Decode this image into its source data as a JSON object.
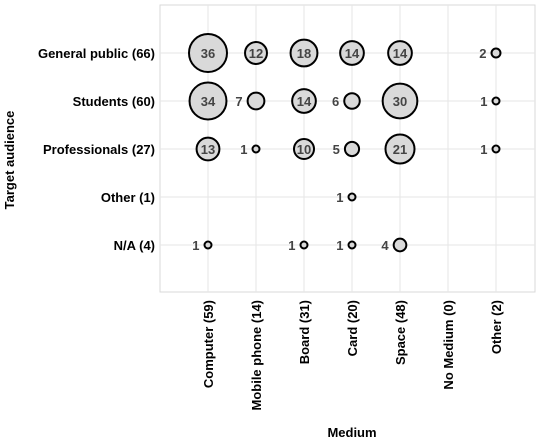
{
  "chart_data": {
    "type": "bubble",
    "title": "",
    "xlabel": "Medium",
    "ylabel": "Target audience",
    "grid": true,
    "rows": [
      "General public (66)",
      "Students (60)",
      "Professionals (27)",
      "Other (1)",
      "N/A (4)"
    ],
    "columns": [
      "Computer (59)",
      "Mobile phone (14)",
      "Board (31)",
      "Card (20)",
      "Space (48)",
      "No Medium (0)",
      "Other (2)"
    ],
    "values": [
      [
        36,
        12,
        18,
        14,
        14,
        0,
        2
      ],
      [
        34,
        7,
        14,
        6,
        30,
        0,
        1
      ],
      [
        13,
        1,
        10,
        5,
        21,
        0,
        1
      ],
      [
        0,
        0,
        0,
        1,
        0,
        0,
        0
      ],
      [
        1,
        0,
        1,
        1,
        4,
        0,
        0
      ]
    ],
    "colors": {
      "bubble_fill": "#d9d9d9",
      "bubble_stroke": "#000000",
      "grid": "#e6e6e6"
    }
  }
}
